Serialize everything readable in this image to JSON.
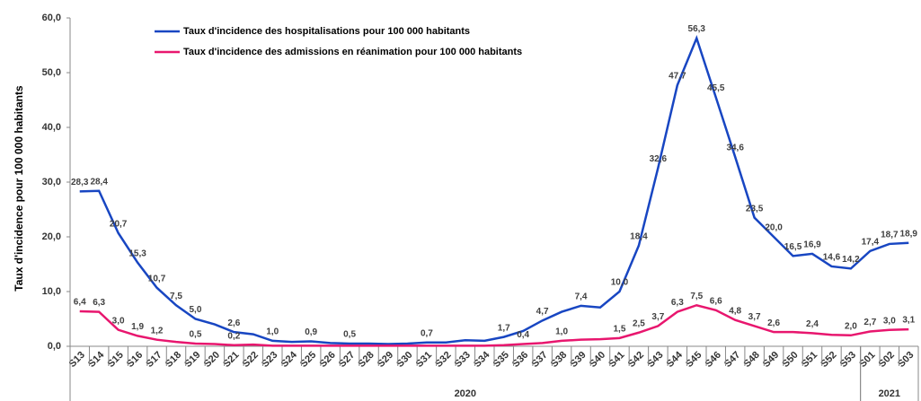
{
  "chart_data": {
    "type": "line",
    "y_label": "Taux d'incidence pour 100 000 habitants",
    "categories": [
      "S13",
      "S14",
      "S15",
      "S16",
      "S17",
      "S18",
      "S19",
      "S20",
      "S21",
      "S22",
      "S23",
      "S24",
      "S25",
      "S26",
      "S27",
      "S28",
      "S29",
      "S30",
      "S31",
      "S32",
      "S33",
      "S34",
      "S35",
      "S36",
      "S37",
      "S38",
      "S39",
      "S40",
      "S41",
      "S42",
      "S43",
      "S44",
      "S45",
      "S46",
      "S47",
      "S48",
      "S49",
      "S50",
      "S51",
      "S52",
      "S53",
      "S01",
      "S02",
      "S03"
    ],
    "groups": [
      {
        "label": "2020",
        "from": "S13",
        "to": "S53"
      },
      {
        "label": "2021",
        "from": "S01",
        "to": "S03"
      }
    ],
    "ylim": [
      0,
      60
    ],
    "yticks": [
      {
        "value": 0,
        "label": "0,0"
      },
      {
        "value": 10,
        "label": "10,0"
      },
      {
        "value": 20,
        "label": "20,0"
      },
      {
        "value": 30,
        "label": "30,0"
      },
      {
        "value": 40,
        "label": "40,0"
      },
      {
        "value": 50,
        "label": "50,0"
      },
      {
        "value": 60,
        "label": "60,0"
      }
    ],
    "grid": false,
    "legend": "top-left",
    "series": [
      {
        "name": "Taux d'incidence des hospitalisations pour 100 000 habitants",
        "color": "#1846c2",
        "values": [
          28.3,
          28.4,
          20.7,
          15.3,
          10.7,
          7.5,
          5.0,
          4.0,
          2.6,
          2.2,
          1.0,
          0.8,
          0.9,
          0.6,
          0.5,
          0.5,
          0.4,
          0.5,
          0.7,
          0.7,
          1.1,
          1.0,
          1.7,
          2.8,
          4.7,
          6.3,
          7.4,
          7.1,
          10.0,
          18.4,
          32.6,
          47.7,
          56.3,
          45.5,
          34.6,
          23.5,
          20.0,
          16.5,
          16.9,
          14.6,
          14.2,
          17.4,
          18.7,
          18.9
        ],
        "value_labels": [
          "28,3",
          "28,4",
          "20,7",
          "15,3",
          "10,7",
          "7,5",
          "5,0",
          null,
          "2,6",
          null,
          "1,0",
          null,
          "0,9",
          null,
          "0,5",
          null,
          null,
          null,
          "0,7",
          null,
          null,
          null,
          "1,7",
          null,
          "4,7",
          null,
          "7,4",
          null,
          "10,0",
          "18,4",
          "32,6",
          "47,7",
          "56,3",
          "45,5",
          "34,6",
          "23,5",
          "20,0",
          "16,5",
          "16,9",
          "14,6",
          "14,2",
          "17,4",
          "18,7",
          "18,9"
        ]
      },
      {
        "name": "Taux d'incidence des admissions en réanimation pour 100 000 habitants",
        "color": "#e8166e",
        "values": [
          6.4,
          6.3,
          3.0,
          1.9,
          1.2,
          0.8,
          0.5,
          0.4,
          0.2,
          0.3,
          0.1,
          0.1,
          0.1,
          0.1,
          0.1,
          0.1,
          0.1,
          0.1,
          0.1,
          0.1,
          0.1,
          0.1,
          0.2,
          0.4,
          0.6,
          1.0,
          1.2,
          1.3,
          1.5,
          2.5,
          3.7,
          6.3,
          7.5,
          6.6,
          4.8,
          3.7,
          2.6,
          2.6,
          2.4,
          2.1,
          2.0,
          2.7,
          3.0,
          3.1
        ],
        "value_labels": [
          "6,4",
          "6,3",
          "3,0",
          "1,9",
          "1,2",
          null,
          "0,5",
          null,
          "0,2",
          null,
          null,
          null,
          null,
          null,
          null,
          null,
          null,
          null,
          null,
          null,
          null,
          null,
          null,
          "0,4",
          null,
          "1,0",
          null,
          null,
          "1,5",
          "2,5",
          "3,7",
          "6,3",
          "7,5",
          "6,6",
          "4,8",
          "3,7",
          "2,6",
          null,
          "2,4",
          null,
          "2,0",
          "2,7",
          "3,0",
          "3,1"
        ]
      }
    ]
  }
}
